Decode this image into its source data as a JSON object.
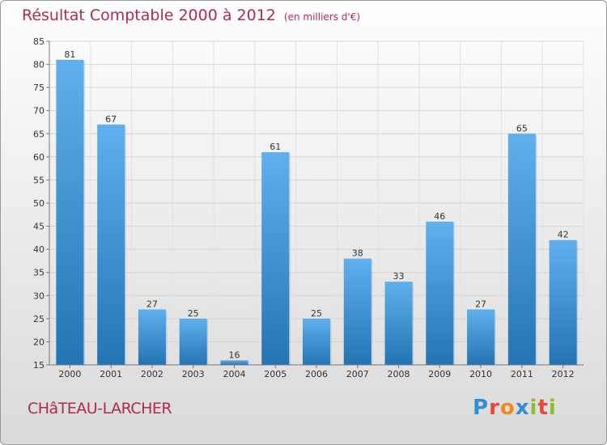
{
  "chart_data": {
    "type": "bar",
    "title": "Résultat Comptable 2000 à 2012",
    "unit_label": "(en milliers d'€)",
    "categories": [
      "2000",
      "2001",
      "2002",
      "2003",
      "2004",
      "2005",
      "2006",
      "2007",
      "2008",
      "2009",
      "2010",
      "2011",
      "2012"
    ],
    "values": [
      81,
      67,
      27,
      25,
      16,
      61,
      25,
      38,
      33,
      46,
      27,
      65,
      42
    ],
    "ylim": [
      15,
      85
    ],
    "yticks": [
      15,
      20,
      25,
      30,
      35,
      40,
      45,
      50,
      55,
      60,
      65,
      70,
      75,
      80,
      85
    ],
    "grid": true,
    "xlabel": "",
    "ylabel": ""
  },
  "commune": "CHâTEAU-LARCHER",
  "logo": {
    "text": "Proxiti",
    "letter_colors": [
      "#2e8fd6",
      "#e8483c",
      "#f08a1c",
      "#2e8fd6",
      "#8cbf26",
      "#e8483c",
      "#8cbf26"
    ]
  },
  "colors": {
    "title": "#b02a4a",
    "bar_top": "#5fb0ec",
    "bar_bottom": "#2374b4"
  }
}
